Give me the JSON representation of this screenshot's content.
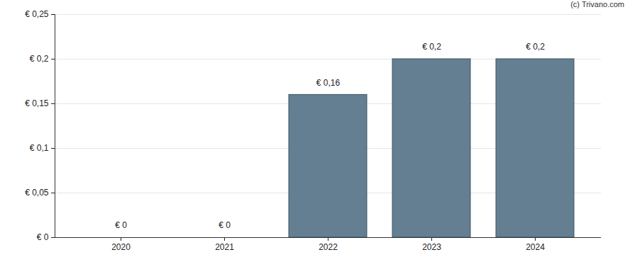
{
  "chart_data": {
    "type": "bar",
    "annotation": "(c) Trivano.com",
    "categories": [
      "2020",
      "2021",
      "2022",
      "2023",
      "2024"
    ],
    "values": [
      0,
      0,
      0.16,
      0.2,
      0.2
    ],
    "value_labels": [
      "€ 0",
      "€ 0",
      "€ 0,16",
      "€ 0,2",
      "€ 0,2"
    ],
    "data_labels": true,
    "color": "#647f92",
    "ylim": [
      0,
      0.25
    ],
    "yticks": [
      {
        "value": 0,
        "label": "€ 0"
      },
      {
        "value": 0.05,
        "label": "€ 0,05"
      },
      {
        "value": 0.1,
        "label": "€ 0,1"
      },
      {
        "value": 0.15,
        "label": "€ 0,15"
      },
      {
        "value": 0.2,
        "label": "€ 0,2"
      },
      {
        "value": 0.25,
        "label": "€ 0,25"
      }
    ],
    "grid": true
  }
}
